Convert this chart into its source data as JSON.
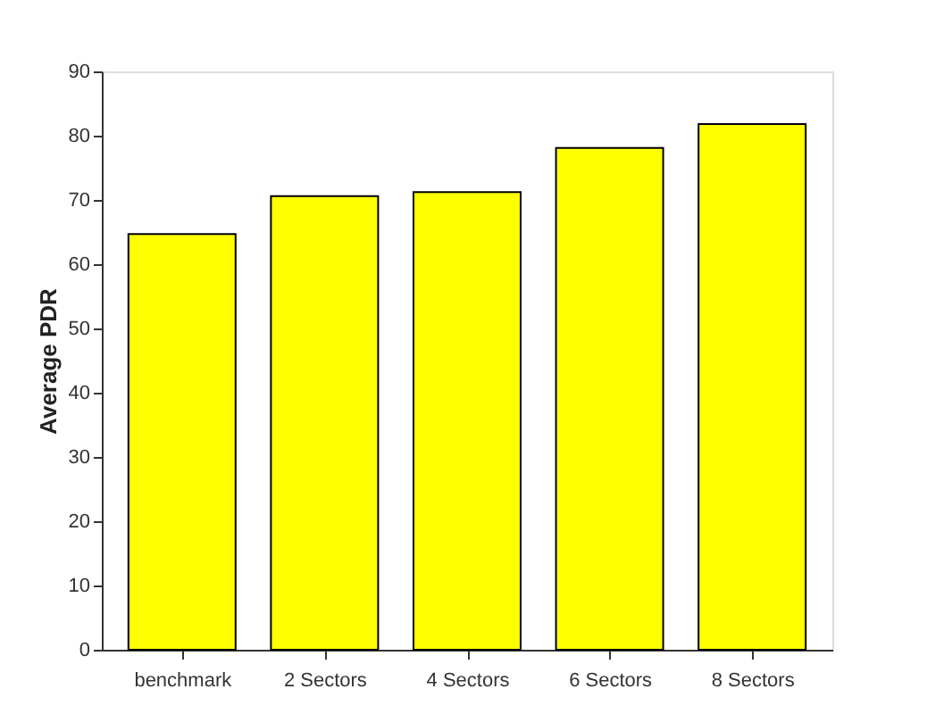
{
  "chart_data": {
    "type": "bar",
    "ylabel": "Average PDR",
    "categories": [
      "benchmark",
      "2 Sectors",
      "4 Sectors",
      "6 Sectors",
      "8 Sectors"
    ],
    "values": [
      64.7,
      70.6,
      71.2,
      78.1,
      81.8
    ],
    "color": "#ffff00",
    "ylim": [
      0,
      90
    ],
    "yticks": [
      0,
      10,
      20,
      30,
      40,
      50,
      60,
      70,
      80,
      90
    ],
    "grid": false
  }
}
